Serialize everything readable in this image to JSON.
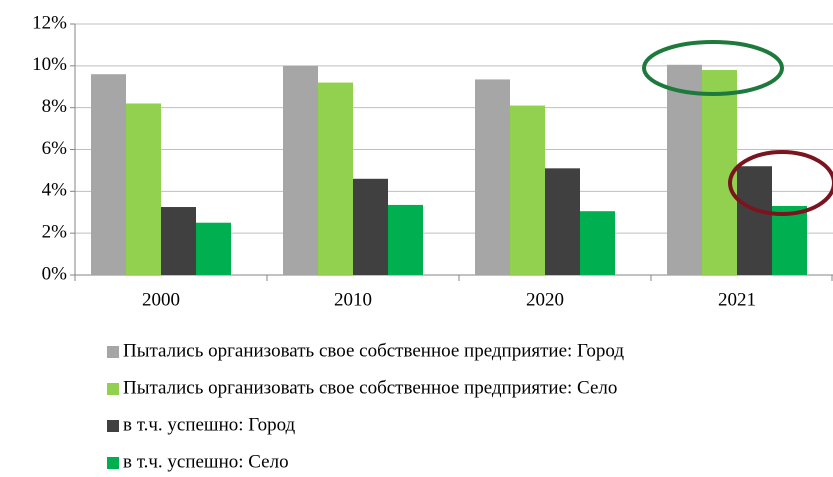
{
  "chart_data": {
    "type": "bar",
    "categories": [
      "2000",
      "2010",
      "2020",
      "2021"
    ],
    "series": [
      {
        "name": "Пытались организовать свое собственное предприятие: Город",
        "color": "#a6a6a6",
        "values": [
          9.6,
          10.0,
          9.35,
          10.05
        ]
      },
      {
        "name": "Пытались организовать свое собственное предприятие: Село",
        "color": "#92d050",
        "values": [
          8.2,
          9.2,
          8.1,
          9.8
        ]
      },
      {
        "name": "в т.ч. успешно: Город",
        "color": "#404040",
        "values": [
          3.25,
          4.6,
          5.1,
          5.2
        ]
      },
      {
        "name": "в т.ч. успешно: Село",
        "color": "#00b050",
        "values": [
          2.5,
          3.35,
          3.05,
          3.3
        ]
      }
    ],
    "ylim": [
      0,
      12
    ],
    "yticks": [
      {
        "value": 0,
        "label": "0%"
      },
      {
        "value": 2,
        "label": "2%"
      },
      {
        "value": 4,
        "label": "4%"
      },
      {
        "value": 6,
        "label": "6%"
      },
      {
        "value": 8,
        "label": "8%"
      },
      {
        "value": 10,
        "label": "10%"
      },
      {
        "value": 12,
        "label": "12%"
      }
    ],
    "grid": true,
    "legend": "bottom"
  }
}
